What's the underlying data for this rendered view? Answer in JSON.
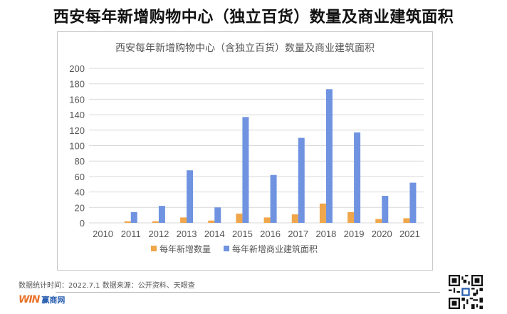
{
  "page": {
    "title": "西安每年新增购物中心（独立百货）数量及商业建筑面积",
    "footer_note": "数据统计时间：2022.7.1  数据来源：公开资料、天眼查",
    "logo_mark": "WIN",
    "logo_text": "赢商网"
  },
  "chart_data": {
    "type": "bar",
    "title": "西安每年新增购物中心（含独立百货）数量及商业建筑面积",
    "categories": [
      "2010",
      "2011",
      "2012",
      "2013",
      "2014",
      "2015",
      "2016",
      "2017",
      "2018",
      "2019",
      "2020",
      "2021"
    ],
    "series": [
      {
        "name": "每年新增数量",
        "color": "#f0a64a",
        "values": [
          0,
          2,
          2,
          7,
          3,
          12,
          7,
          11,
          25,
          14,
          5,
          6
        ]
      },
      {
        "name": "每年新增商业建筑面积",
        "color": "#6f93e0",
        "values": [
          0,
          14,
          22,
          68,
          20,
          137,
          62,
          110,
          173,
          117,
          35,
          52
        ]
      }
    ],
    "yticks": [
      "0",
      "20",
      "40",
      "60",
      "80",
      "100",
      "120",
      "140",
      "160",
      "180",
      "200"
    ],
    "ylim": [
      0,
      200
    ],
    "grid": true,
    "legend": "bottom",
    "xlabel": "",
    "ylabel": ""
  }
}
